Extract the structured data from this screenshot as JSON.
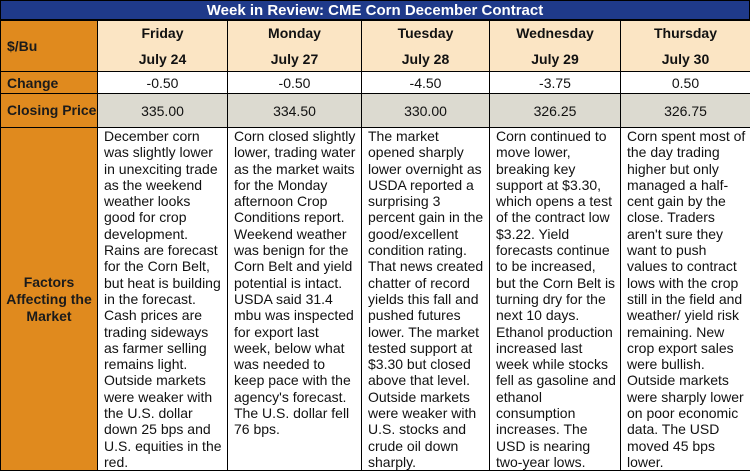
{
  "title": "Week in Review: CME Corn December Contract",
  "row_labels": {
    "unit": "$/Bu",
    "change": "Change",
    "closing_price": "Closing Price",
    "factors": "Factors Affecting the Market"
  },
  "days": [
    {
      "day": "Friday",
      "date": "July 24",
      "change": "-0.50",
      "closing": "335.00",
      "factors": "December corn was slightly lower in unexciting trade as the weekend weather looks good for crop development. Rains are forecast for the Corn Belt, but heat is building in the forecast. Cash prices are trading sideways as farmer selling remains light. Outside markets were weaker with the U.S. dollar down 25 bps and U.S. equities in the red."
    },
    {
      "day": "Monday",
      "date": "July 27",
      "change": "-0.50",
      "closing": "334.50",
      "factors": "Corn closed slightly lower, trading water as the market waits for the Monday afternoon Crop Conditions report. Weekend weather was benign for the Corn Belt and yield potential is intact. USDA said 31.4 mbu was inspected for export last week, below what was needed to keep pace with the agency's forecast. The U.S. dollar fell 76 bps."
    },
    {
      "day": "Tuesday",
      "date": "July 28",
      "change": "-4.50",
      "closing": "330.00",
      "factors": "The market opened sharply lower overnight as USDA reported a surprising 3 percent gain in the good/excellent condition rating. That news created chatter of record yields this fall and pushed futures lower. The market tested support at $3.30 but closed above that level. Outside markets were weaker with U.S. stocks and crude oil down sharply."
    },
    {
      "day": "Wednesday",
      "date": "July 29",
      "change": "-3.75",
      "closing": "326.25",
      "factors": "Corn continued to move lower, breaking key support at $3.30, which opens a test of the contract low $3.22. Yield forecasts continue to be increased, but the Corn Belt is turning dry for the next 10 days. Ethanol production increased last week while stocks fell as gasoline and ethanol consumption increases. The USD is nearing two-year lows."
    },
    {
      "day": "Thursday",
      "date": "July 30",
      "change": "0.50",
      "closing": "326.75",
      "factors": "Corn spent most of the day trading higher but only managed a half-cent gain by the close. Traders aren't sure they want to push values to contract lows with the crop still in the field and weather/ yield risk remaining. New crop export sales were bullish. Outside markets were sharply lower on poor economic data. The USD moved 45 bps lower."
    }
  ],
  "colors": {
    "title_bg": "#1f3a8a",
    "label_bg": "#e08a1e",
    "header_bg": "#fbe5c4",
    "closing_bg": "#dcdad0"
  }
}
